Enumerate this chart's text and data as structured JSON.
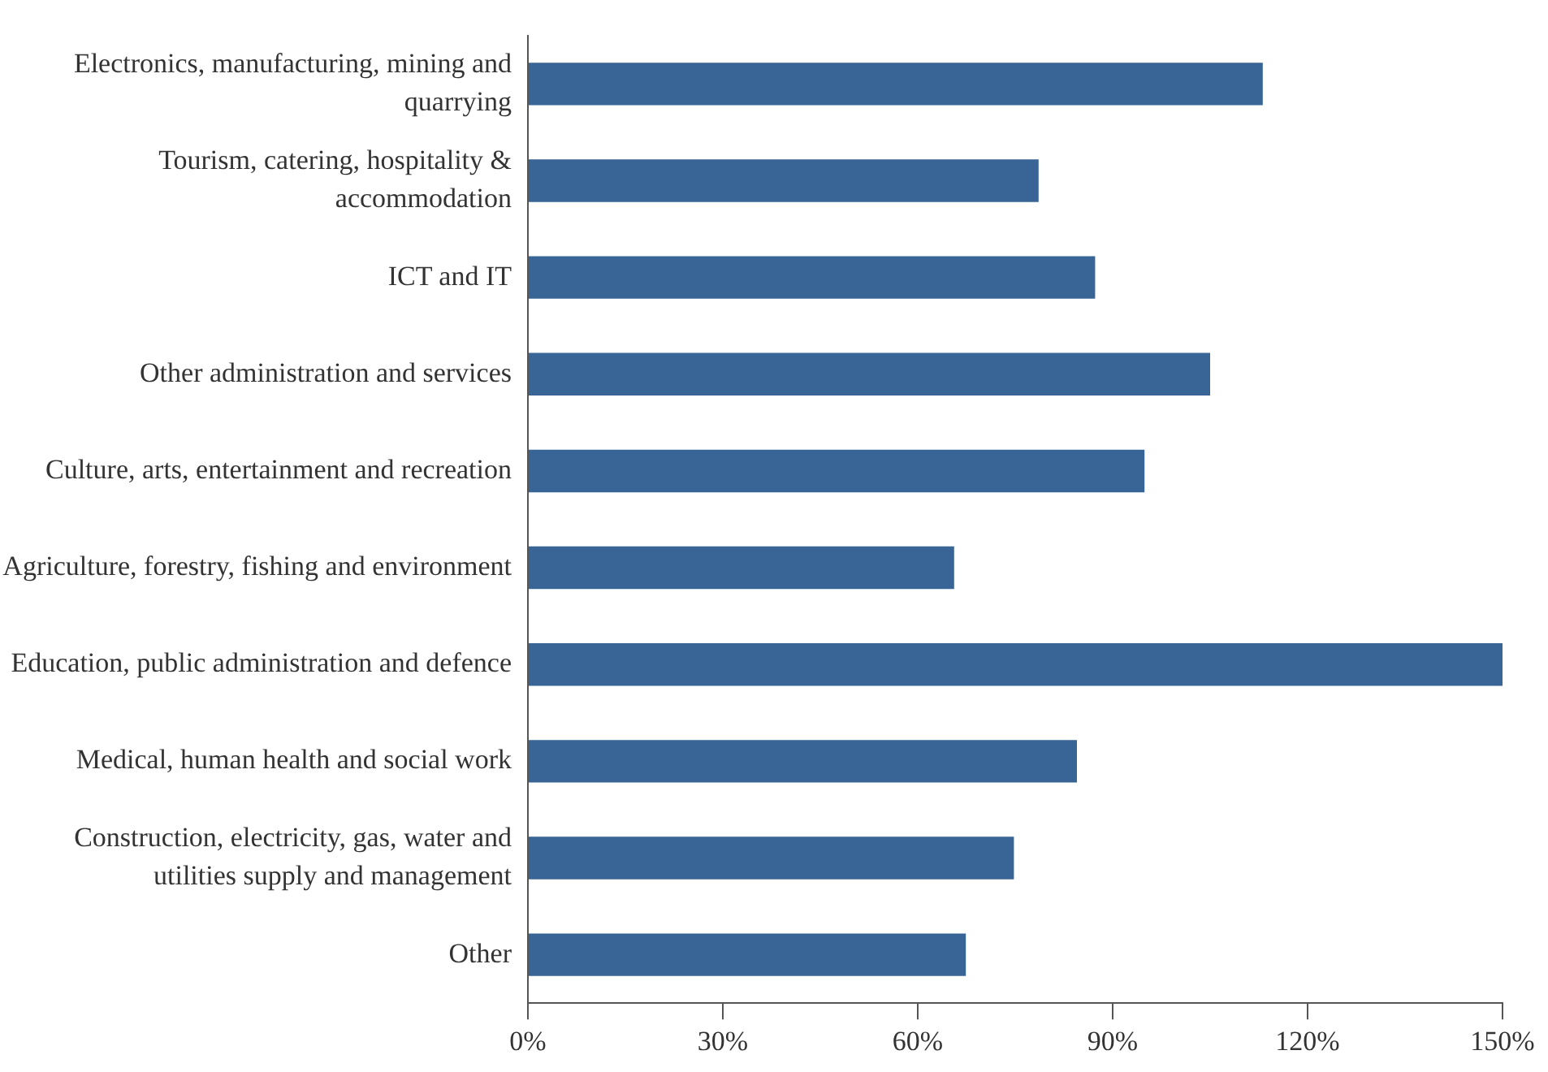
{
  "chart_data": {
    "type": "bar",
    "orientation": "horizontal",
    "categories": [
      "Electronics, manufacturing, mining and quarrying",
      "Tourism, catering, hospitality & accommodation",
      "ICT and IT",
      "Other administration and services",
      "Culture, arts, entertainment and recreation",
      "Agriculture, forestry, fishing and environment",
      "Education, public administration and defence",
      "Medical, human health and social work",
      "Construction, electricity, gas, water and utilities supply and management",
      "Other"
    ],
    "values": [
      113.1,
      78.6,
      87.3,
      105,
      94.9,
      65.6,
      150,
      84.5,
      74.8,
      67.4
    ],
    "color": "#386596",
    "xlim": [
      0,
      150
    ],
    "xticks": [
      {
        "value": 0,
        "label": "0%"
      },
      {
        "value": 30,
        "label": "30%"
      },
      {
        "value": 60,
        "label": "60%"
      },
      {
        "value": 90,
        "label": "90%"
      },
      {
        "value": 120,
        "label": "120%"
      },
      {
        "value": 150,
        "label": "150%"
      }
    ],
    "grid": false,
    "legend": false
  }
}
